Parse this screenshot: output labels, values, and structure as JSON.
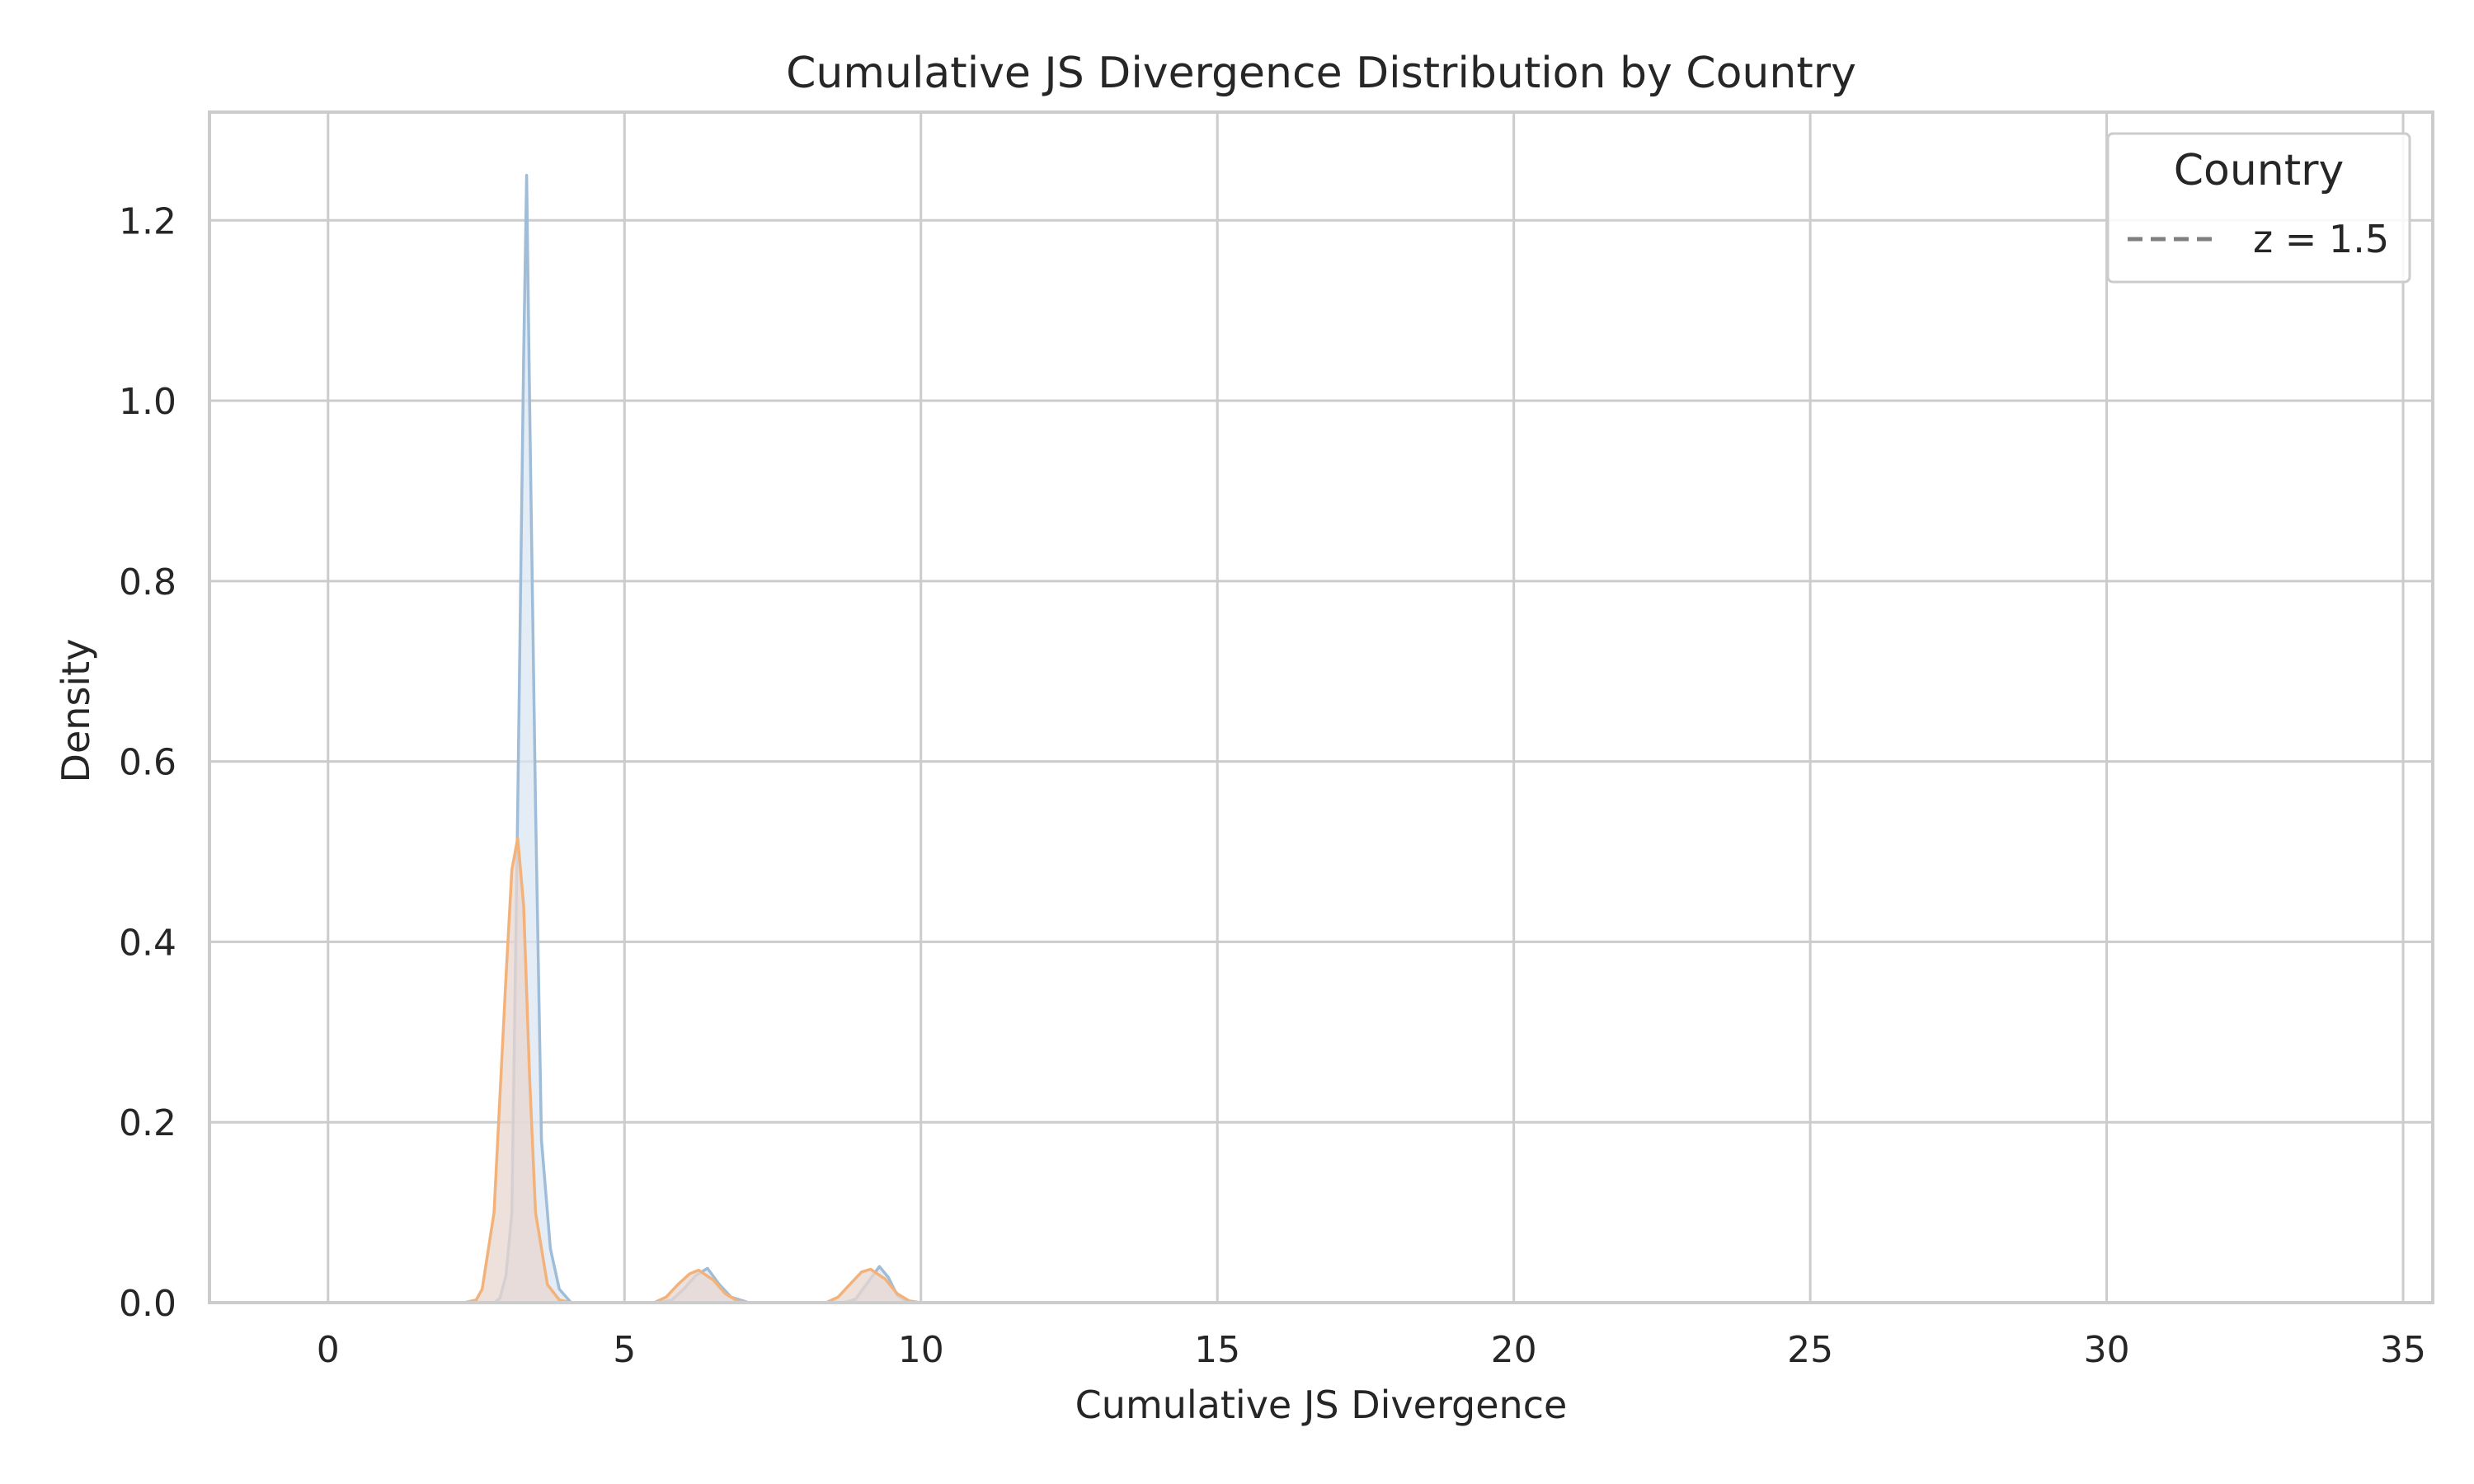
{
  "chart_data": {
    "type": "area",
    "title": "Cumulative JS Divergence Distribution by Country",
    "xlabel": "Cumulative JS Divergence",
    "ylabel": "Density",
    "xlim": [
      -2,
      35.5
    ],
    "ylim": [
      0,
      1.32
    ],
    "xticks": [
      0,
      5,
      10,
      15,
      20,
      25,
      30,
      35
    ],
    "yticks": [
      0.0,
      0.2,
      0.4,
      0.6,
      0.8,
      1.0,
      1.2
    ],
    "xtick_labels": [
      "0",
      "5",
      "10",
      "15",
      "20",
      "25",
      "30",
      "35"
    ],
    "ytick_labels": [
      "0.0",
      "0.2",
      "0.4",
      "0.6",
      "0.8",
      "1.0",
      "1.2"
    ],
    "grid": true,
    "legend": {
      "title": "Country",
      "placement": "top-right",
      "entries": [
        {
          "label": "z = 1.5",
          "style": "dashed",
          "color": "#7f7f7f"
        }
      ]
    },
    "series": [
      {
        "color": "#9fbcd9",
        "fill": "#dbe6f2",
        "points": [
          [
            2.8,
            0.0
          ],
          [
            2.9,
            0.005
          ],
          [
            3.0,
            0.03
          ],
          [
            3.1,
            0.1
          ],
          [
            3.2,
            0.55
          ],
          [
            3.3,
            1.05
          ],
          [
            3.35,
            1.25
          ],
          [
            3.4,
            1.0
          ],
          [
            3.5,
            0.55
          ],
          [
            3.6,
            0.18
          ],
          [
            3.75,
            0.06
          ],
          [
            3.9,
            0.015
          ],
          [
            4.1,
            0.0
          ],
          [
            5.6,
            0.0
          ],
          [
            5.8,
            0.003
          ],
          [
            6.0,
            0.015
          ],
          [
            6.2,
            0.03
          ],
          [
            6.4,
            0.038
          ],
          [
            6.6,
            0.02
          ],
          [
            6.8,
            0.006
          ],
          [
            7.1,
            0.0
          ],
          [
            8.7,
            0.0
          ],
          [
            8.9,
            0.004
          ],
          [
            9.1,
            0.022
          ],
          [
            9.3,
            0.04
          ],
          [
            9.45,
            0.028
          ],
          [
            9.6,
            0.008
          ],
          [
            9.8,
            0.0
          ]
        ]
      },
      {
        "color": "#f2b27a",
        "fill": "#e8d7cf",
        "points": [
          [
            2.3,
            0.0
          ],
          [
            2.5,
            0.003
          ],
          [
            2.6,
            0.015
          ],
          [
            2.8,
            0.1
          ],
          [
            3.0,
            0.36
          ],
          [
            3.1,
            0.48
          ],
          [
            3.2,
            0.515
          ],
          [
            3.3,
            0.44
          ],
          [
            3.4,
            0.25
          ],
          [
            3.5,
            0.1
          ],
          [
            3.7,
            0.02
          ],
          [
            3.9,
            0.003
          ],
          [
            4.1,
            0.0
          ],
          [
            5.5,
            0.0
          ],
          [
            5.7,
            0.006
          ],
          [
            5.9,
            0.02
          ],
          [
            6.1,
            0.032
          ],
          [
            6.25,
            0.036
          ],
          [
            6.5,
            0.025
          ],
          [
            6.7,
            0.01
          ],
          [
            6.9,
            0.002
          ],
          [
            7.1,
            0.0
          ],
          [
            8.4,
            0.0
          ],
          [
            8.6,
            0.006
          ],
          [
            8.8,
            0.02
          ],
          [
            9.0,
            0.034
          ],
          [
            9.15,
            0.037
          ],
          [
            9.4,
            0.026
          ],
          [
            9.6,
            0.01
          ],
          [
            9.8,
            0.002
          ],
          [
            10.0,
            0.0
          ]
        ]
      }
    ]
  }
}
